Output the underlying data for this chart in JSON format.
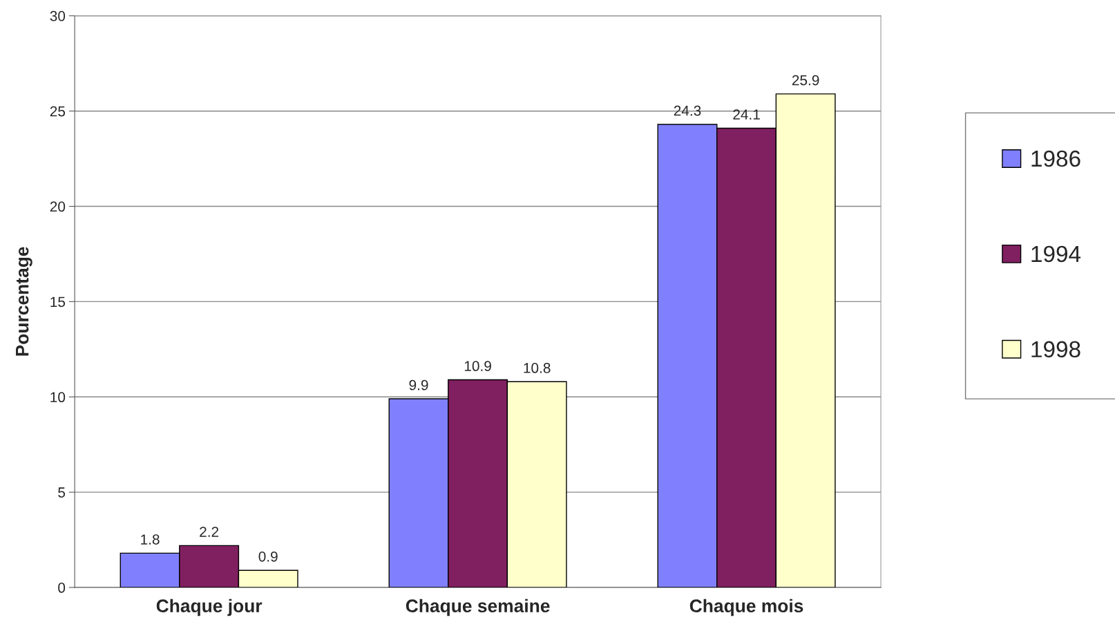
{
  "chart_data": {
    "type": "bar",
    "ylabel": "Pourcentage",
    "categories": [
      "Chaque jour",
      "Chaque semaine",
      "Chaque mois"
    ],
    "series": [
      {
        "name": "1986",
        "color": "#8080ff",
        "values": [
          1.8,
          9.9,
          24.3
        ]
      },
      {
        "name": "1994",
        "color": "#802060",
        "values": [
          2.2,
          10.9,
          24.1
        ]
      },
      {
        "name": "1998",
        "color": "#ffffcc",
        "values": [
          0.9,
          10.8,
          25.9
        ]
      }
    ],
    "ylim": [
      0,
      30
    ],
    "yticks": [
      0,
      5,
      10,
      15,
      20,
      25,
      30
    ],
    "grid": "y",
    "legend": "right",
    "data_labels": true
  }
}
